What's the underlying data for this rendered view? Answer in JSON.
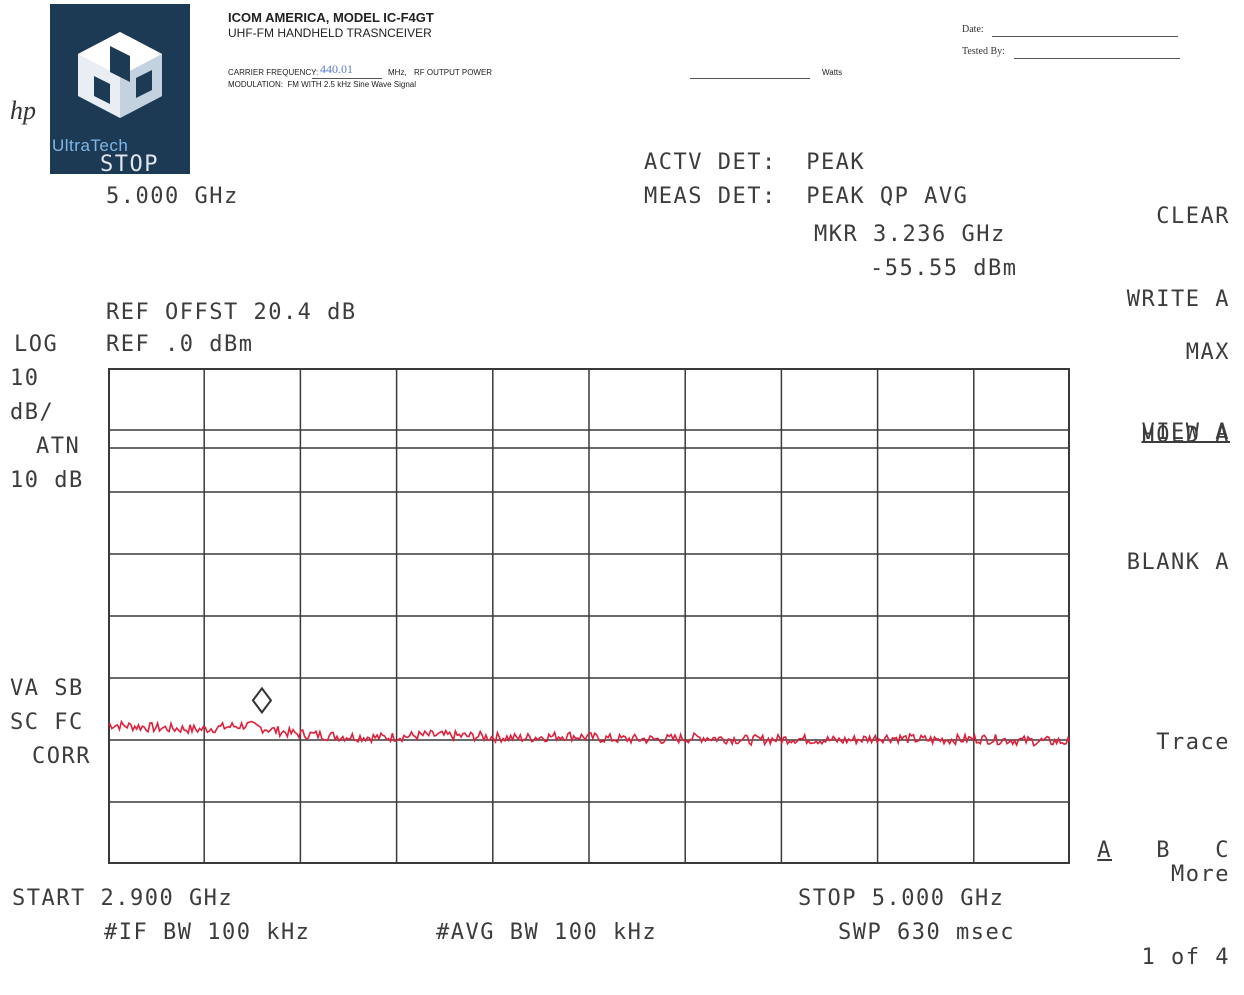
{
  "header": {
    "logo_text": "UltraTech",
    "hp_mark": "hp",
    "title": "ICOM AMERICA, MODEL IC-F4GT",
    "subtitle": "UHF-FM HANDHELD TRASNCEIVER",
    "carrier_label": "CARRIER FREQUENCY:",
    "carrier_value": "440.01",
    "carrier_unit": "MHz,",
    "power_label": "RF OUTPUT POWER",
    "power_unit": "Watts",
    "modulation": "MODULATION:  FM WITH 2.5 kHz Sine Wave Signal",
    "date_label": "Date:",
    "tested_by_label": "Tested By:"
  },
  "analyzer": {
    "stop_label": "STOP",
    "stop_value": "5.000 GHz",
    "actv_det": "ACTV DET:  PEAK",
    "meas_det": "MEAS DET:  PEAK QP AVG",
    "marker_freq": "MKR 3.236 GHz",
    "marker_level": "-55.55 dBm",
    "ref_offset": "REF OFFST 20.4 dB",
    "ref_level": "REF .0 dBm",
    "scale_log": "LOG",
    "scale_div_value": "10",
    "scale_div_unit": "dB/",
    "atn_label": "ATN",
    "atn_value": "10 dB",
    "va_sb": "VA SB",
    "sc_fc": "SC FC",
    "corr": "CORR",
    "start": "START 2.900 GHz",
    "stop_bottom": "STOP 5.000 GHz",
    "if_bw": "#IF BW 100 kHz",
    "avg_bw": "#AVG BW 100 kHz",
    "sweep": "SWP 630 msec"
  },
  "softkeys": {
    "clear_write_1": "CLEAR",
    "clear_write_2": "WRITE A",
    "max_hold_1": "MAX",
    "max_hold_2": "HOLD A",
    "view": "VIEW A",
    "blank": "BLANK A",
    "trace_label": "Trace",
    "trace_a": "A",
    "trace_b": "B",
    "trace_c": "C",
    "more_1": "More",
    "more_2": "1 of 4"
  },
  "colors": {
    "trace": "#e0203a",
    "grid": "#3a3a3a"
  },
  "chart_data": {
    "type": "line",
    "title": "",
    "xlabel": "",
    "ylabel": "",
    "x_unit": "GHz",
    "y_unit": "dBm",
    "xlim": [
      2.9,
      5.0
    ],
    "ylim": [
      -80,
      0
    ],
    "grid": true,
    "marker": {
      "x": 3.236,
      "y": -55.55
    },
    "series": [
      {
        "x": [
          2.9,
          3.0,
          3.1,
          3.2,
          3.3,
          3.4,
          3.5,
          3.6,
          3.7,
          3.8,
          3.9,
          4.0,
          4.1,
          4.2,
          4.3,
          4.4,
          4.5,
          4.6,
          4.7,
          4.8,
          4.9,
          5.0
        ],
        "values": [
          -57.5,
          -58.0,
          -58.3,
          -57.6,
          -58.9,
          -59.4,
          -59.6,
          -59.2,
          -59.4,
          -59.7,
          -59.3,
          -59.8,
          -59.9,
          -59.6,
          -60.0,
          -59.8,
          -60.1,
          -59.6,
          -60.0,
          -59.8,
          -60.1,
          -60.3
        ]
      }
    ]
  }
}
